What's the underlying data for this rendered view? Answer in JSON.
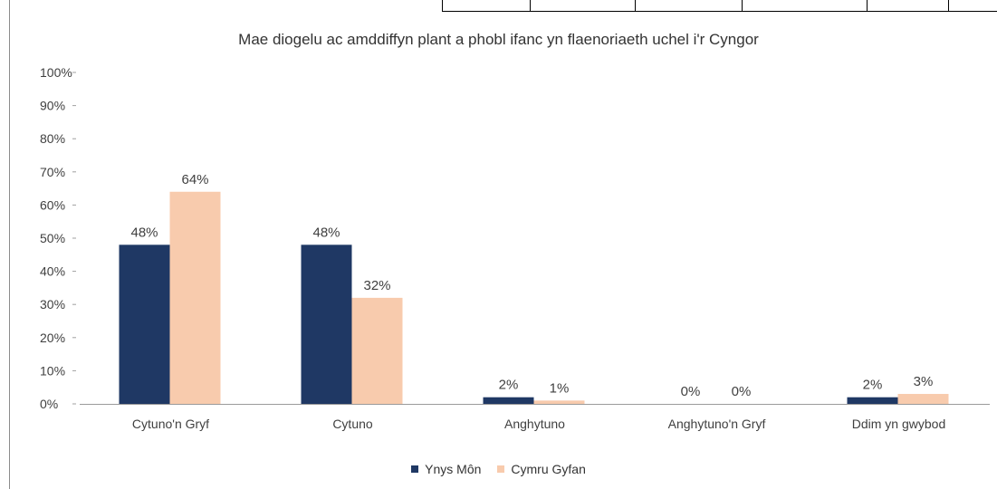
{
  "chart_data": {
    "type": "bar",
    "title": "Mae diogelu ac amddiffyn plant a phobl ifanc yn flaenoriaeth uchel i'r Cyngor",
    "categories": [
      "Cytuno'n Gryf",
      "Cytuno",
      "Anghytuno",
      "Anghytuno'n Gryf",
      "Ddim yn gwybod"
    ],
    "series": [
      {
        "name": "Ynys Môn",
        "color": "#1f3864",
        "values": [
          48,
          48,
          2,
          0,
          2
        ],
        "labels": [
          "48%",
          "48%",
          "2%",
          "0%",
          "2%"
        ]
      },
      {
        "name": "Cymru Gyfan",
        "color": "#f8cbad",
        "values": [
          64,
          32,
          1,
          0,
          3
        ],
        "labels": [
          "64%",
          "32%",
          "1%",
          "0%",
          "3%"
        ]
      }
    ],
    "yticks": [
      "0%",
      "10%",
      "20%",
      "30%",
      "40%",
      "50%",
      "60%",
      "70%",
      "80%",
      "90%",
      "100%"
    ],
    "ylim": [
      0,
      100
    ],
    "xlabel": "",
    "ylabel": "",
    "grid": false,
    "legend_position": "bottom"
  }
}
